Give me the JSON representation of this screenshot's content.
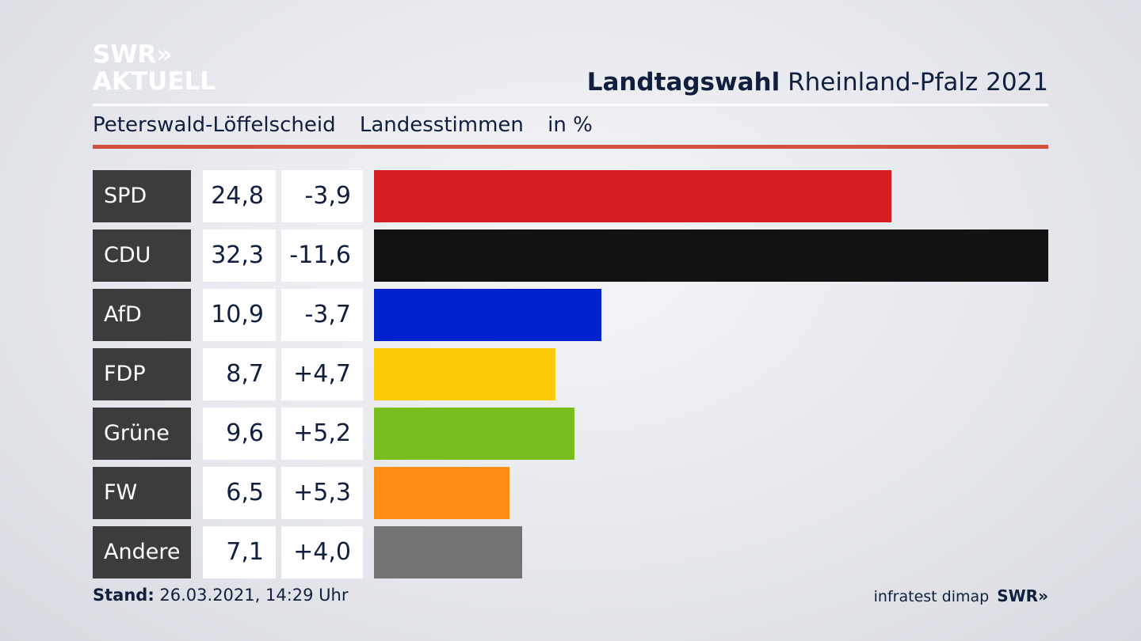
{
  "brand": {
    "line1": "SWR»",
    "line2": "AKTUELL"
  },
  "header": {
    "title_bold": "Landtagswahl",
    "title_rest": " Rheinland-Pfalz 2021"
  },
  "subheader": {
    "location": "Peterswald-Löffelscheid",
    "type": "Landesstimmen",
    "unit": "in %"
  },
  "footer": {
    "stand_label": "Stand:",
    "stand_value": " 26.03.2021, 14:29 Uhr",
    "source": "infratest dimap",
    "logo": "SWR»"
  },
  "chart_data": {
    "type": "bar",
    "orientation": "horizontal",
    "categories": [
      "SPD",
      "CDU",
      "AfD",
      "FDP",
      "Grüne",
      "FW",
      "Andere"
    ],
    "values": [
      24.8,
      32.3,
      10.9,
      8.7,
      9.6,
      6.5,
      7.1
    ],
    "value_labels": [
      "24,8",
      "32,3",
      "10,9",
      "8,7",
      "9,6",
      "6,5",
      "7,1"
    ],
    "diff_labels": [
      "-3,9",
      "-11,6",
      "-3,7",
      "+4,7",
      "+5,2",
      "+5,3",
      "+4,0"
    ],
    "colors": [
      "#d61f20",
      "#121212",
      "#0022cc",
      "#fdcc08",
      "#78be1e",
      "#ff8c14",
      "#737373"
    ],
    "xlim": [
      0,
      32.3
    ],
    "grid": false,
    "legend": "none"
  }
}
